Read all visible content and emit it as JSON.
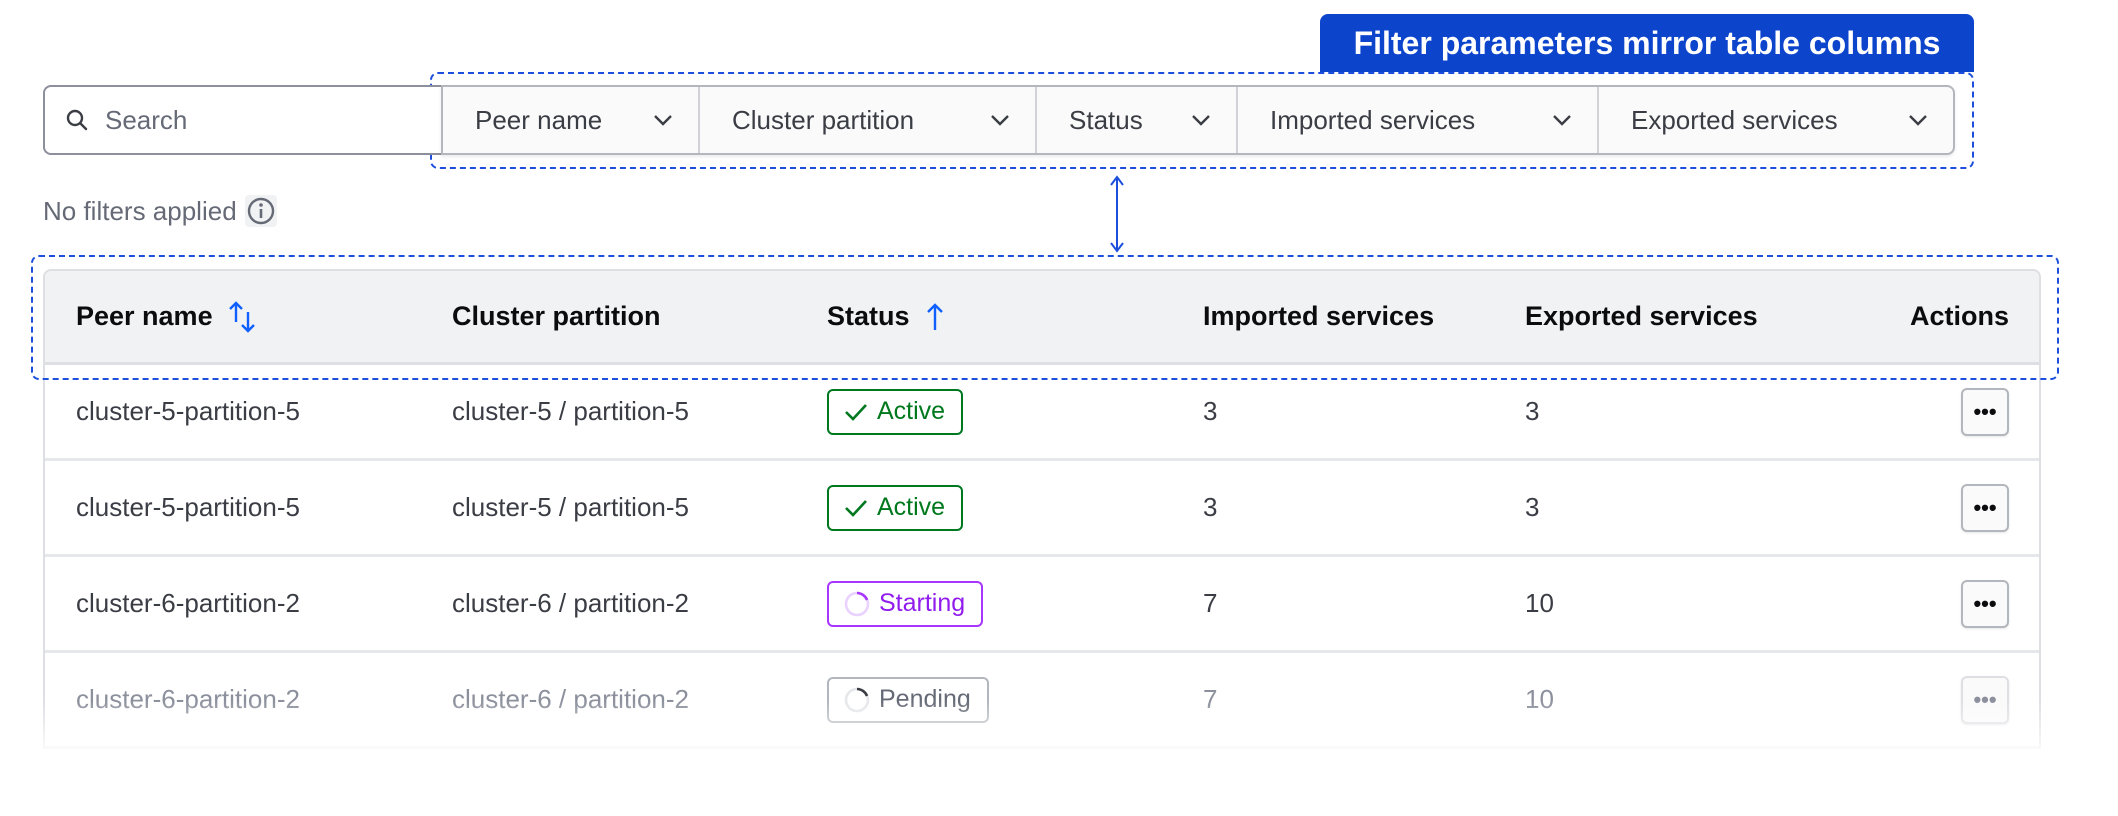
{
  "annotation": {
    "label": "Filter parameters mirror table columns",
    "color": "#0c44cc"
  },
  "search": {
    "placeholder": "Search"
  },
  "filters": [
    {
      "label": "Peer name"
    },
    {
      "label": "Cluster partition"
    },
    {
      "label": "Status"
    },
    {
      "label": "Imported services"
    },
    {
      "label": "Exported services"
    }
  ],
  "filter_status": {
    "text": "No filters applied",
    "icon": "info-icon"
  },
  "table": {
    "headers": {
      "peer": "Peer name",
      "partition": "Cluster partition",
      "status": "Status",
      "imported": "Imported services",
      "exported": "Exported services",
      "actions": "Actions"
    },
    "sort": {
      "peer": "unsorted",
      "status": "ascending"
    },
    "rows": [
      {
        "peer": "cluster-5-partition-5",
        "partition": "cluster-5 / partition-5",
        "status": "Active",
        "imported": "3",
        "exported": "3",
        "actions": "•••"
      },
      {
        "peer": "cluster-5-partition-5",
        "partition": "cluster-5 / partition-5",
        "status": "Active",
        "imported": "3",
        "exported": "3",
        "actions": "•••"
      },
      {
        "peer": "cluster-6-partition-2",
        "partition": "cluster-6 / partition-2",
        "status": "Starting",
        "imported": "7",
        "exported": "10",
        "actions": "•••"
      },
      {
        "peer": "cluster-6-partition-2",
        "partition": "cluster-6 / partition-2",
        "status": "Pending",
        "imported": "7",
        "exported": "10",
        "actions": "•••"
      }
    ]
  },
  "colors": {
    "active": "#00781e",
    "starting": "#a737ff",
    "pending": "#656a76",
    "sort": "#1060ff"
  }
}
